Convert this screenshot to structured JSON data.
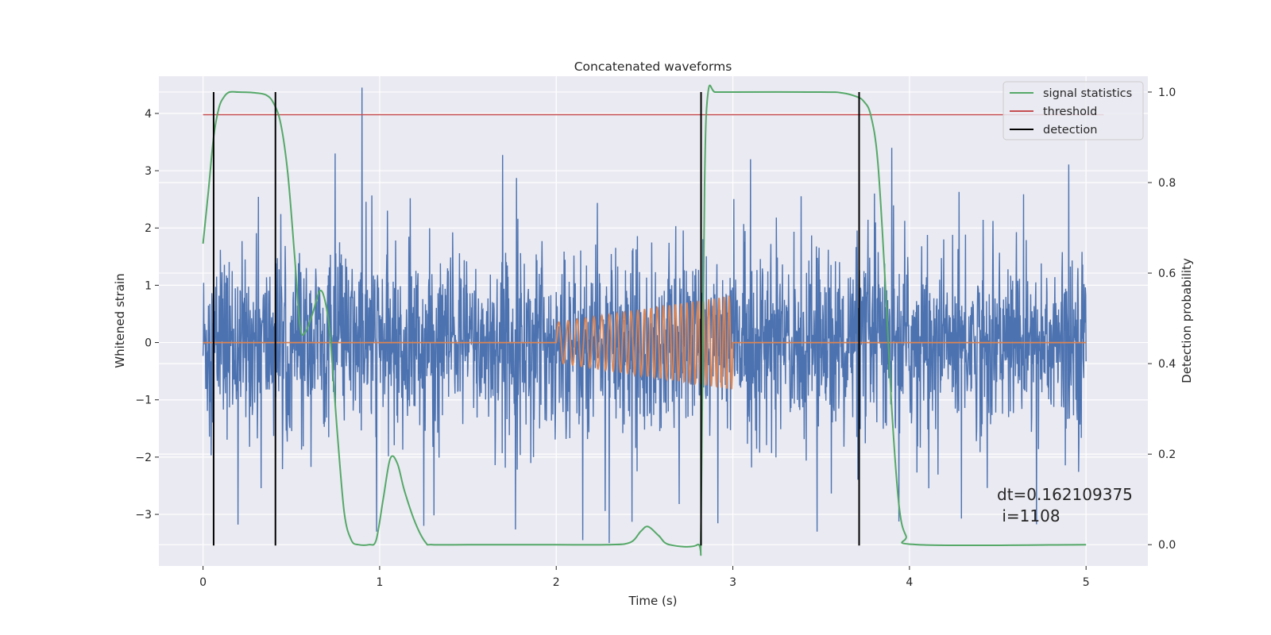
{
  "chart_data": {
    "type": "line",
    "title": "Concatenated waveforms",
    "xlabel": "Time (s)",
    "ylabel": "Whitened strain",
    "y2label": "Detection probability",
    "xlim": [
      -0.25,
      5.35
    ],
    "ylim": [
      -3.9,
      4.65
    ],
    "y2lim": [
      -0.047,
      1.035
    ],
    "xticks": [
      0,
      1,
      2,
      3,
      4,
      5
    ],
    "yticks": [
      -3,
      -2,
      -1,
      0,
      1,
      2,
      3,
      4
    ],
    "y2ticks": [
      0.0,
      0.2,
      0.4,
      0.6,
      0.8,
      1.0
    ],
    "xtick_labels": [
      "0",
      "1",
      "2",
      "3",
      "4",
      "5"
    ],
    "ytick_labels": [
      "−3",
      "−2",
      "−1",
      "0",
      "1",
      "2",
      "3",
      "4"
    ],
    "y2tick_labels": [
      "0.0",
      "0.2",
      "0.4",
      "0.6",
      "0.8",
      "1.0"
    ],
    "grid": true,
    "legend_position": "top-right",
    "legend": [
      {
        "label": "signal statistics",
        "color": "#55a868"
      },
      {
        "label": "threshold",
        "color": "#c44e52"
      },
      {
        "label": "detection",
        "color": "#000000"
      }
    ],
    "series": [
      {
        "kind": "noise",
        "color": "#4c72b0",
        "x_range": [
          0,
          5
        ],
        "typical_range": [
          -1.5,
          1.5
        ],
        "spikes": [
          [
            0.9,
            4.45
          ],
          [
            2.15,
            -3.45
          ],
          [
            2.3,
            -3.5
          ],
          [
            3.9,
            3.4
          ],
          [
            1.25,
            -3.2
          ],
          [
            3.1,
            3.2
          ]
        ]
      },
      {
        "kind": "chirp",
        "color": "#dd8452",
        "baseline": 0,
        "x_range": [
          0,
          5
        ],
        "chirp_start": 2.0,
        "chirp_end": 3.0,
        "amplitude_start": 0.35,
        "amplitude_end": 0.82,
        "freq_start_hz": 18,
        "freq_end_hz": 36
      },
      {
        "name": "signal statistics",
        "axis": "right",
        "color": "#55a868",
        "x": [
          0.0,
          0.03,
          0.06,
          0.09,
          0.12,
          0.15,
          0.2,
          0.3,
          0.36,
          0.4,
          0.44,
          0.48,
          0.52,
          0.55,
          0.58,
          0.62,
          0.66,
          0.69,
          0.72,
          0.76,
          0.8,
          0.84,
          0.88,
          0.94,
          0.98,
          1.02,
          1.06,
          1.1,
          1.14,
          1.2,
          1.26,
          1.3,
          1.5,
          2.0,
          2.3,
          2.42,
          2.48,
          2.52,
          2.58,
          2.64,
          2.8,
          2.82,
          2.84,
          2.86,
          2.9,
          3.0,
          3.5,
          3.62,
          3.7,
          3.74,
          3.78,
          3.82,
          3.86,
          3.9,
          3.94,
          3.98,
          4.05,
          5.0
        ],
        "y": [
          0.665,
          0.78,
          0.9,
          0.965,
          0.99,
          1.0,
          1.0,
          0.998,
          0.993,
          0.975,
          0.93,
          0.82,
          0.63,
          0.48,
          0.47,
          0.51,
          0.56,
          0.54,
          0.46,
          0.25,
          0.07,
          0.01,
          0.0,
          0.0,
          0.01,
          0.1,
          0.19,
          0.18,
          0.12,
          0.05,
          0.005,
          0.0,
          0.0,
          0.0,
          0.0,
          0.005,
          0.03,
          0.04,
          0.02,
          0.0,
          0.0,
          0.05,
          0.8,
          1.0,
          1.0,
          1.0,
          1.0,
          0.998,
          0.99,
          0.98,
          0.95,
          0.85,
          0.6,
          0.3,
          0.09,
          0.02,
          0.0,
          0.0
        ]
      },
      {
        "name": "threshold",
        "axis": "right",
        "color": "#c44e52",
        "x": [
          0.0,
          5.1
        ],
        "y": [
          0.95,
          0.95
        ]
      }
    ],
    "detections": {
      "name": "detection",
      "color": "#000000",
      "x": [
        0.06,
        0.41,
        2.82,
        3.715
      ]
    },
    "annotation": {
      "text": [
        "dt=0.162109375",
        " i=1108"
      ]
    }
  }
}
